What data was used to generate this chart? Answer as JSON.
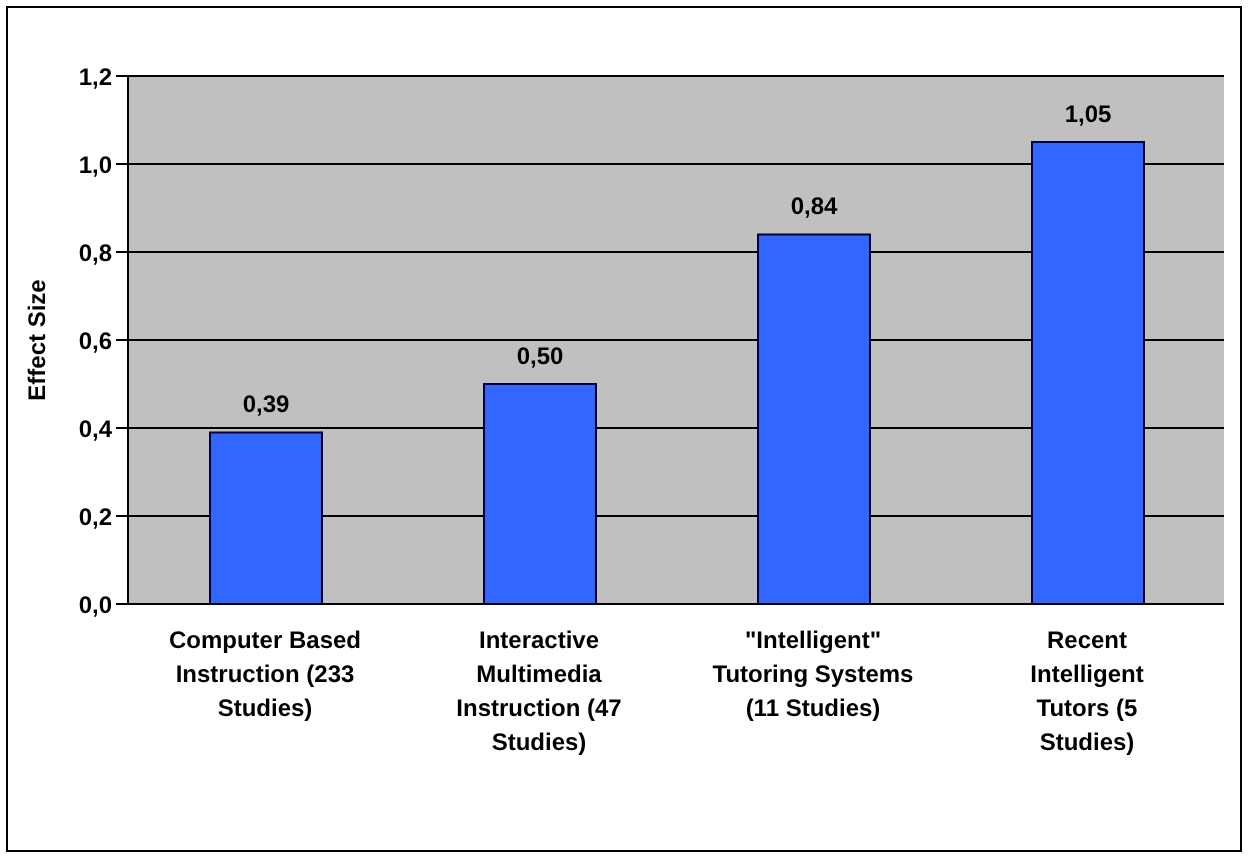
{
  "chart_data": {
    "type": "bar",
    "ylabel": "Effect Size",
    "categories": [
      "Computer Based Instruction (233 Studies)",
      "Interactive Multimedia Instruction (47 Studies)",
      "\"Intelligent\" Tutoring Systems (11 Studies)",
      "Recent Intelligent Tutors (5 Studies)"
    ],
    "values": [
      0.39,
      0.5,
      0.84,
      1.05
    ],
    "value_labels": [
      "0,39",
      "0,50",
      "0,84",
      "1,05"
    ],
    "color": "#3366ff",
    "ylim": [
      0,
      1.2
    ],
    "yticks": [
      {
        "value": 0,
        "label": "0,0"
      },
      {
        "value": 0.2,
        "label": "0,2"
      },
      {
        "value": 0.4,
        "label": "0,4"
      },
      {
        "value": 0.6,
        "label": "0,6"
      },
      {
        "value": 0.8,
        "label": "0,8"
      },
      {
        "value": 1,
        "label": "1,0"
      },
      {
        "value": 1.2,
        "label": "1,2"
      }
    ],
    "grid": "y",
    "legend": false
  }
}
